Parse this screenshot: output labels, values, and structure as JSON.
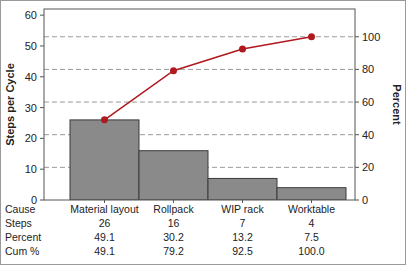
{
  "chart_data": {
    "type": "pareto",
    "xlabel": "Cause",
    "ylabel": "Steps per Cycle",
    "y2label": "Percent",
    "categories": [
      "Material layout",
      "Rollpack",
      "WIP rack",
      "Worktable"
    ],
    "series": [
      {
        "name": "Steps",
        "type": "bar",
        "color": "#8a8a8a",
        "values": [
          26,
          16,
          7,
          4
        ]
      },
      {
        "name": "Cum %",
        "type": "line",
        "axis": "y2",
        "color": "#b0191e",
        "marker": "circle",
        "values": [
          49.1,
          79.2,
          92.5,
          100.0
        ],
        "value_labels": [
          "49.1",
          "79.2",
          "92.5",
          "100.0"
        ]
      }
    ],
    "percent": {
      "name": "Percent",
      "values": [
        49.1,
        30.2,
        13.2,
        7.5
      ]
    },
    "ylim": [
      0,
      62
    ],
    "yticks": [
      0,
      10,
      20,
      30,
      40,
      50,
      60
    ],
    "y2lim": [
      0,
      117
    ],
    "y2ticks": [
      0,
      20,
      40,
      60,
      80,
      100
    ],
    "grid": true
  }
}
